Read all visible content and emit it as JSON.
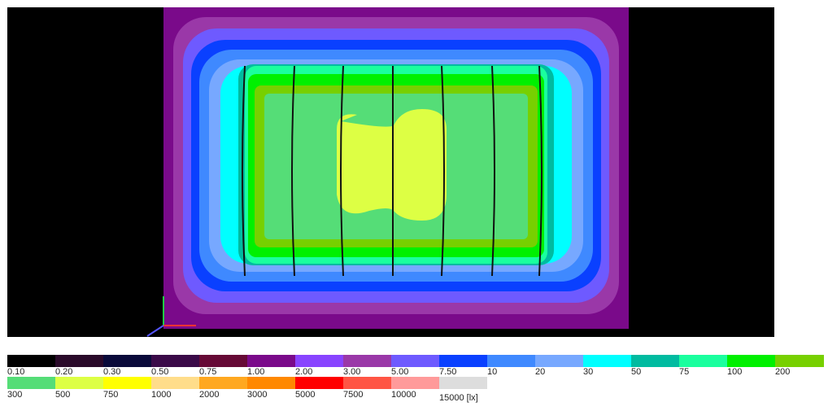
{
  "chart_data": {
    "type": "heatmap",
    "title": "",
    "unit": "[lx]",
    "legend": [
      {
        "value": "0.10",
        "color": "#000000"
      },
      {
        "value": "0.20",
        "color": "#2a0a2a"
      },
      {
        "value": "0.30",
        "color": "#0a0a3a"
      },
      {
        "value": "0.50",
        "color": "#3a0a48"
      },
      {
        "value": "0.75",
        "color": "#660a36"
      },
      {
        "value": "1.00",
        "color": "#7a0a8a"
      },
      {
        "value": "2.00",
        "color": "#8844ff"
      },
      {
        "value": "3.00",
        "color": "#9a38a8"
      },
      {
        "value": "5.00",
        "color": "#6e5aff"
      },
      {
        "value": "7.50",
        "color": "#0a40ff"
      },
      {
        "value": "10",
        "color": "#3f89ff"
      },
      {
        "value": "20",
        "color": "#77a8ff"
      },
      {
        "value": "30",
        "color": "#00ffff"
      },
      {
        "value": "50",
        "color": "#00bba0"
      },
      {
        "value": "75",
        "color": "#1aff9e"
      },
      {
        "value": "100",
        "color": "#00f000"
      },
      {
        "value": "200",
        "color": "#77d000"
      },
      {
        "value": "300",
        "color": "#55dd77"
      },
      {
        "value": "500",
        "color": "#ddff44"
      },
      {
        "value": "750",
        "color": "#ffff00"
      },
      {
        "value": "1000",
        "color": "#ffdd8a"
      },
      {
        "value": "2000",
        "color": "#ffa820"
      },
      {
        "value": "3000",
        "color": "#ff8800"
      },
      {
        "value": "5000",
        "color": "#ff0000"
      },
      {
        "value": "7500",
        "color": "#ff5544"
      },
      {
        "value": "10000",
        "color": "#ff9a9a"
      },
      {
        "value": "15000 [lx]",
        "color": "#dddddd"
      }
    ],
    "legend_rows": [
      17,
      10
    ],
    "heatmap_zones": [
      {
        "level": "1.00",
        "color": "#7a0a8a"
      },
      {
        "level": "3.00",
        "color": "#9a38a8"
      },
      {
        "level": "5.00",
        "color": "#6e5aff"
      },
      {
        "level": "7.50",
        "color": "#0a40ff"
      },
      {
        "level": "10",
        "color": "#3f89ff"
      },
      {
        "level": "20",
        "color": "#77a8ff"
      },
      {
        "level": "30",
        "color": "#00ffff"
      },
      {
        "level": "50",
        "color": "#00bba0"
      },
      {
        "level": "75",
        "color": "#1aff9e"
      },
      {
        "level": "100",
        "color": "#00f000"
      },
      {
        "level": "200",
        "color": "#77d000"
      },
      {
        "level": "300",
        "color": "#55dd77"
      },
      {
        "level": "500",
        "color": "#ddff44"
      }
    ],
    "background_color": "#000000",
    "grid": false
  }
}
